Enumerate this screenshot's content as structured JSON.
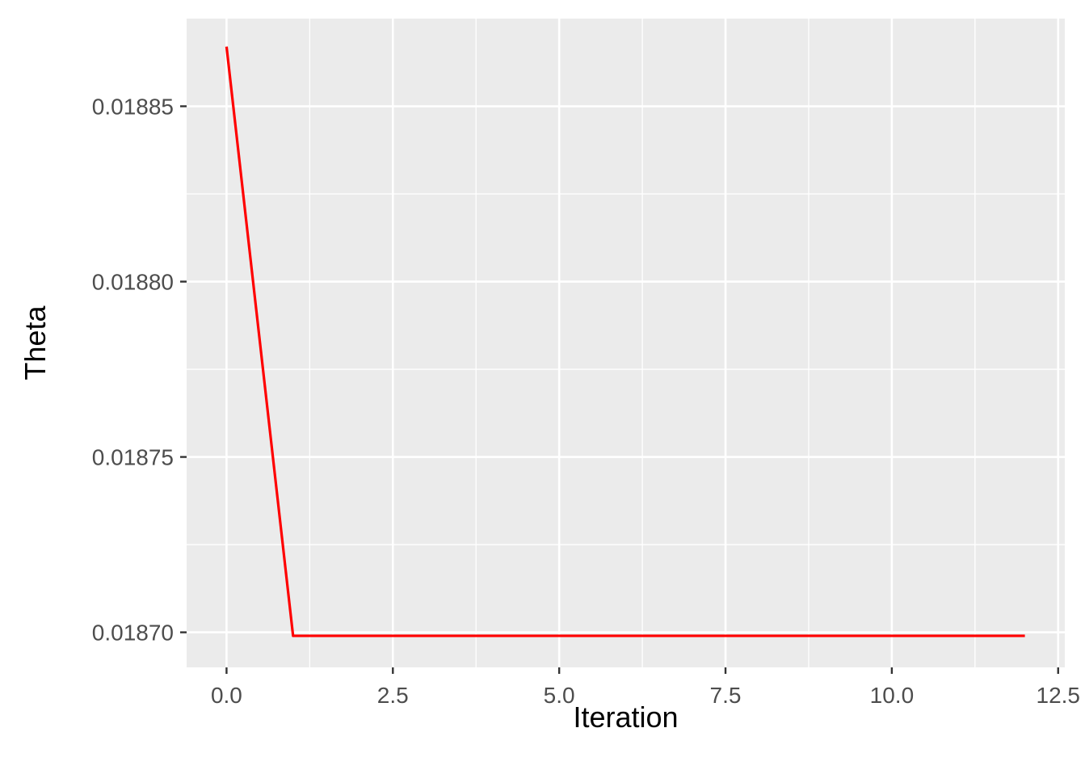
{
  "chart_data": {
    "type": "line",
    "title": "",
    "xlabel": "Iteration",
    "ylabel": "Theta",
    "x": [
      0,
      1,
      2,
      3,
      4,
      5,
      6,
      7,
      8,
      9,
      10,
      11,
      12
    ],
    "series": [
      {
        "color": "#ff0000",
        "values": [
          0.018867,
          0.018699,
          0.018699,
          0.018699,
          0.018699,
          0.018699,
          0.018699,
          0.018699,
          0.018699,
          0.018699,
          0.018699,
          0.018699,
          0.018699
        ]
      }
    ],
    "xlim": [
      -0.6,
      12.6
    ],
    "ylim": [
      0.01869,
      0.018875
    ],
    "x_ticks": [
      0,
      2.5,
      5,
      7.5,
      10,
      12.5
    ],
    "x_tick_labels": [
      "0.0",
      "2.5",
      "5.0",
      "7.5",
      "10.0",
      "12.5"
    ],
    "x_minor_ticks": [
      1.25,
      3.75,
      6.25,
      8.75,
      11.25
    ],
    "y_ticks": [
      0.0187,
      0.01875,
      0.0188,
      0.01885
    ],
    "y_tick_labels": [
      "0.01870",
      "0.01875",
      "0.01880",
      "0.01885"
    ],
    "y_minor_ticks": [
      0.018725,
      0.018775,
      0.018825
    ],
    "grid": true,
    "legend": "none",
    "panel_background": "#ebebeb",
    "grid_color": "#ffffff"
  }
}
